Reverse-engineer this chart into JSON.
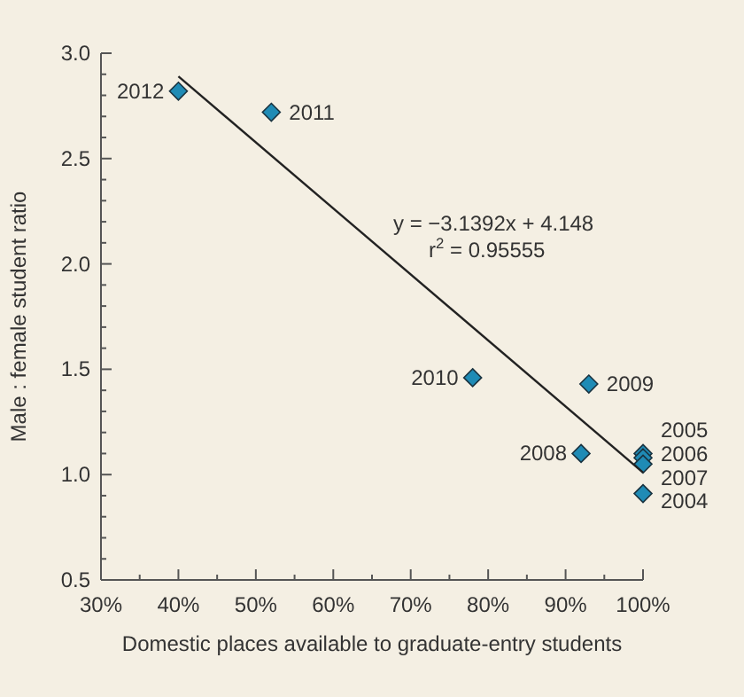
{
  "chart_data": {
    "type": "scatter",
    "xlabel": "Domestic places available to graduate-entry students",
    "ylabel": "Male : female student ratio",
    "xlim": [
      30,
      100
    ],
    "ylim": [
      0.5,
      3.0
    ],
    "xticks": [
      {
        "value": 30,
        "label": "30%"
      },
      {
        "value": 35,
        "label": null
      },
      {
        "value": 40,
        "label": "40%"
      },
      {
        "value": 45,
        "label": null
      },
      {
        "value": 50,
        "label": "50%"
      },
      {
        "value": 55,
        "label": null
      },
      {
        "value": 60,
        "label": "60%"
      },
      {
        "value": 65,
        "label": null
      },
      {
        "value": 70,
        "label": "70%"
      },
      {
        "value": 75,
        "label": null
      },
      {
        "value": 80,
        "label": "80%"
      },
      {
        "value": 85,
        "label": null
      },
      {
        "value": 90,
        "label": "90%"
      },
      {
        "value": 95,
        "label": null
      },
      {
        "value": 100,
        "label": "100%"
      }
    ],
    "yticks": [
      {
        "value": 0.5,
        "label": "0.5"
      },
      {
        "value": 0.6,
        "label": null
      },
      {
        "value": 0.7,
        "label": null
      },
      {
        "value": 0.8,
        "label": null
      },
      {
        "value": 0.9,
        "label": null
      },
      {
        "value": 1.0,
        "label": "1.0"
      },
      {
        "value": 1.1,
        "label": null
      },
      {
        "value": 1.2,
        "label": null
      },
      {
        "value": 1.3,
        "label": null
      },
      {
        "value": 1.4,
        "label": null
      },
      {
        "value": 1.5,
        "label": "1.5"
      },
      {
        "value": 1.6,
        "label": null
      },
      {
        "value": 1.7,
        "label": null
      },
      {
        "value": 1.8,
        "label": null
      },
      {
        "value": 1.9,
        "label": null
      },
      {
        "value": 2.0,
        "label": "2.0"
      },
      {
        "value": 2.1,
        "label": null
      },
      {
        "value": 2.2,
        "label": null
      },
      {
        "value": 2.3,
        "label": null
      },
      {
        "value": 2.4,
        "label": null
      },
      {
        "value": 2.5,
        "label": "2.5"
      },
      {
        "value": 2.6,
        "label": null
      },
      {
        "value": 2.7,
        "label": null
      },
      {
        "value": 2.8,
        "label": null
      },
      {
        "value": 2.9,
        "label": null
      },
      {
        "value": 3.0,
        "label": "3.0"
      }
    ],
    "marker": "diamond",
    "series": [
      {
        "color": "#1f8bb5",
        "x": [
          40,
          52,
          78,
          93,
          92,
          100,
          100,
          100,
          100
        ],
        "values": [
          2.82,
          2.72,
          1.46,
          1.43,
          1.1,
          1.1,
          1.08,
          1.05,
          0.91
        ]
      },
      {
        "type": "line",
        "color": "#222222",
        "line_style": "solid",
        "marker": "none",
        "x": [
          40,
          100
        ],
        "values": [
          2.89,
          1.01
        ]
      }
    ],
    "annotations": [
      {
        "text": "2012",
        "x": 40,
        "y": 2.82
      },
      {
        "text": "2011",
        "x": 52,
        "y": 2.72
      },
      {
        "text": "2010",
        "x": 78,
        "y": 1.46
      },
      {
        "text": "2009",
        "x": 93,
        "y": 1.43
      },
      {
        "text": "2008",
        "x": 92,
        "y": 1.1
      },
      {
        "text": "2005",
        "x": 100,
        "y": 1.1
      },
      {
        "text": "2006",
        "x": 100,
        "y": 1.08
      },
      {
        "text": "2007",
        "x": 100,
        "y": 1.05
      },
      {
        "text": "2004",
        "x": 100,
        "y": 0.91
      },
      "y = −3.1392x + 4.148",
      "r$^{2}$ = 0.95555"
    ]
  }
}
